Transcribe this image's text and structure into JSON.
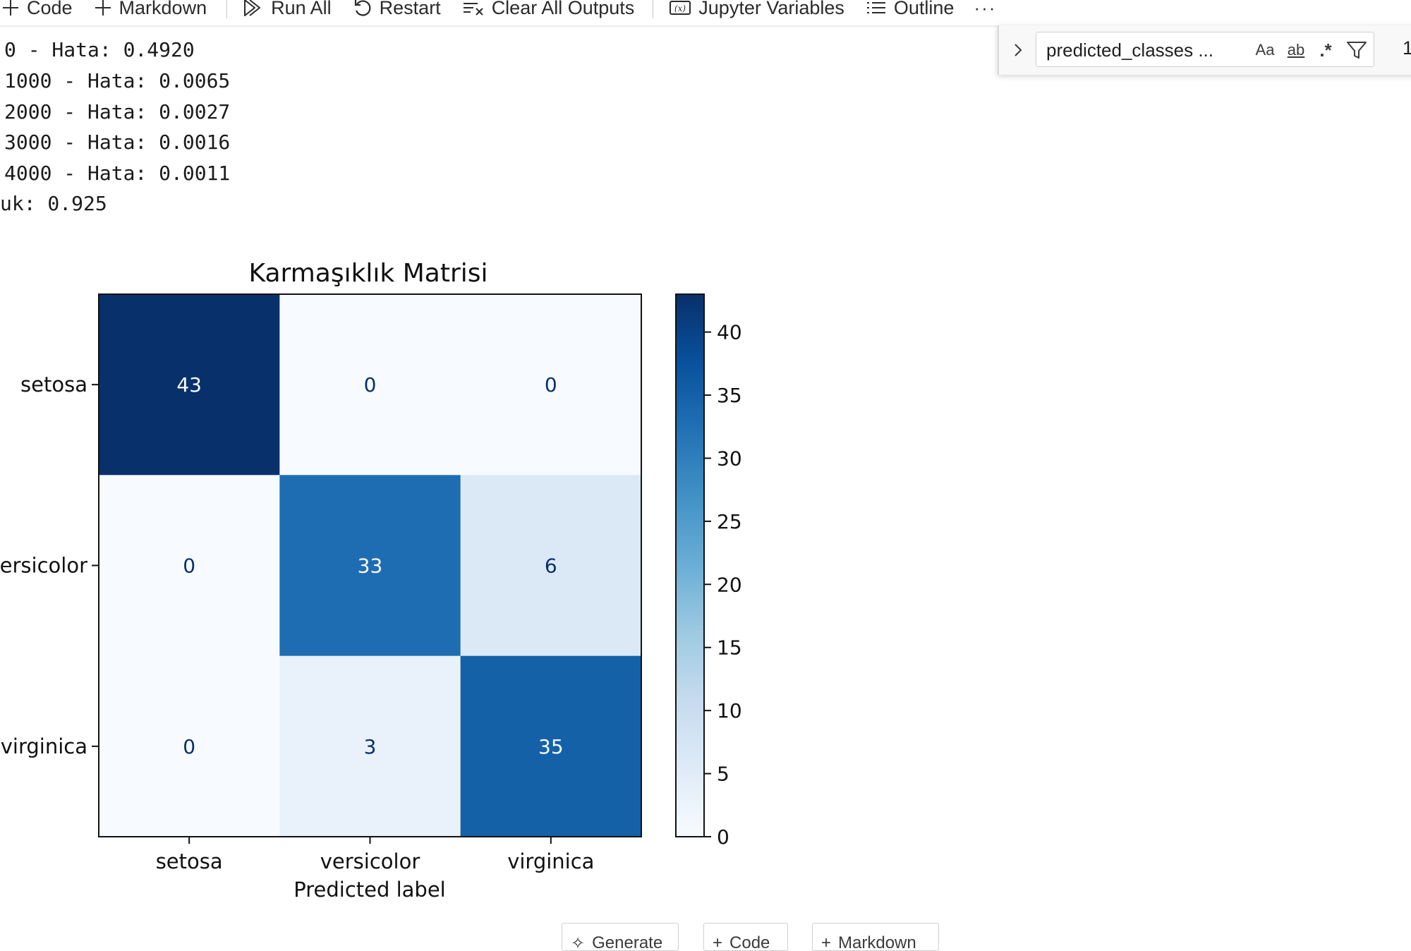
{
  "toolbar": {
    "code_label": "Code",
    "markdown_label": "Markdown",
    "run_all_label": "Run All",
    "restart_label": "Restart",
    "clear_outputs_label": "Clear All Outputs",
    "variables_label": "Jupyter Variables",
    "outline_label": "Outline",
    "more_label": "···"
  },
  "find": {
    "value": "predicted_classes ...",
    "match_case": "Aa",
    "whole_word": "ab",
    "regex": ".*",
    "count": "1"
  },
  "output": {
    "lines": [
      "0 - Hata: 0.4920",
      "1000 - Hata: 0.0065",
      "2000 - Hata: 0.0027",
      "3000 - Hata: 0.0016",
      "4000 - Hata: 0.0011",
      "uk: 0.925"
    ]
  },
  "chart_data": {
    "type": "heatmap",
    "title": "Karmaşıklık Matrisi",
    "xlabel": "Predicted label",
    "ylabel": "",
    "x_categories": [
      "setosa",
      "versicolor",
      "virginica"
    ],
    "y_categories": [
      "setosa",
      "ersicolor",
      "virginica"
    ],
    "matrix": [
      [
        43,
        0,
        0
      ],
      [
        0,
        33,
        6
      ],
      [
        0,
        3,
        35
      ]
    ],
    "colormap": "Blues",
    "colorbar": {
      "min": 0,
      "max": 43,
      "ticks": [
        0,
        5,
        10,
        15,
        20,
        25,
        30,
        35,
        40
      ]
    },
    "grid": false
  },
  "bottom": {
    "generate_label": "Generate",
    "code_label": "Code",
    "markdown_label": "Markdown"
  }
}
